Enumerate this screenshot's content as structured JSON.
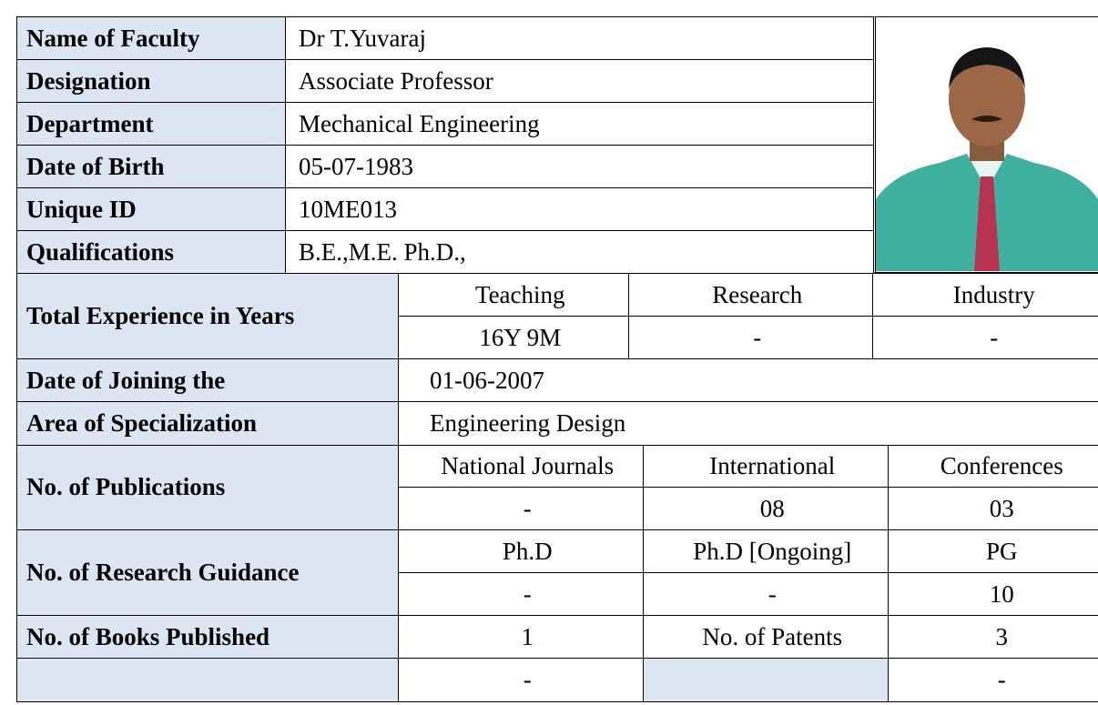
{
  "personal": [
    {
      "label": "Name of Faculty",
      "value": "Dr T.Yuvaraj"
    },
    {
      "label": "Designation",
      "value": "Associate  Professor"
    },
    {
      "label": "Department",
      "value": "Mechanical Engineering"
    },
    {
      "label": "Date of Birth",
      "value": "05-07-1983"
    },
    {
      "label": "Unique ID",
      "value": "10ME013"
    },
    {
      "label": "Qualifications",
      "value": "B.E.,M.E. Ph.D.,"
    }
  ],
  "experience": {
    "label": "Total Experience in Years",
    "headers": [
      "Teaching",
      "Research",
      "Industry"
    ],
    "values": [
      "16Y 9M",
      "-",
      "-"
    ]
  },
  "joining": {
    "label": "Date of Joining the",
    "value": "01-06-2007"
  },
  "specialization": {
    "label": "Area of Specialization",
    "value": "Engineering Design"
  },
  "publications": {
    "label": "No. of  Publications",
    "headers": [
      "National Journals",
      "International",
      "Conferences"
    ],
    "values": [
      "-",
      "08",
      "03"
    ]
  },
  "research_guidance": {
    "label": "No. of Research Guidance",
    "headers": [
      "Ph.D",
      "Ph.D [Ongoing]",
      "PG"
    ],
    "values": [
      "-",
      "-",
      "10"
    ]
  },
  "books": {
    "label": "No. of Books Published",
    "value": "1",
    "patents_label": "No. of Patents",
    "patents_value": "3"
  },
  "last_row": [
    "-",
    "-"
  ]
}
